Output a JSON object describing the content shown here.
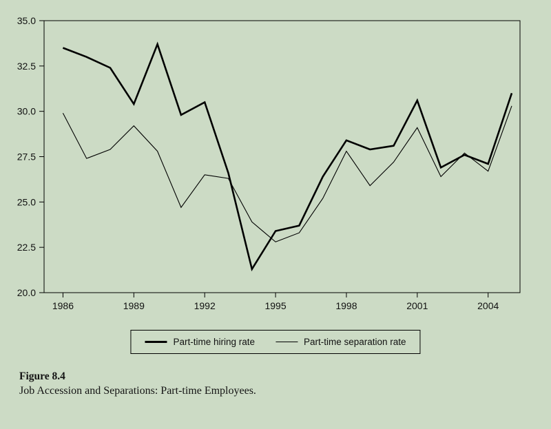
{
  "figure": {
    "number": "Figure 8.4",
    "caption": "Job Accession and Separations: Part-time Employees."
  },
  "legend": {
    "items": [
      {
        "label": "Part-time hiring rate",
        "weight": "thick"
      },
      {
        "label": "Part-time separation rate",
        "weight": "thin"
      }
    ]
  },
  "colors": {
    "background": "#ccdbc5",
    "line": "#000000",
    "axis": "#000000",
    "text": "#111111"
  },
  "chart_data": {
    "type": "line",
    "title": "",
    "xlabel": "",
    "ylabel": "",
    "grid": false,
    "legend_position": "bottom",
    "ylim": [
      20.0,
      35.0
    ],
    "x": [
      1986,
      1987,
      1988,
      1989,
      1990,
      1991,
      1992,
      1993,
      1994,
      1995,
      1996,
      1997,
      1998,
      1999,
      2000,
      2001,
      2002,
      2003,
      2004,
      2005
    ],
    "series": [
      {
        "name": "Part-time hiring rate",
        "stroke_width": 2.6,
        "values": [
          33.5,
          33.0,
          32.4,
          30.4,
          33.7,
          29.8,
          30.5,
          26.6,
          21.3,
          23.4,
          23.7,
          26.4,
          28.4,
          27.9,
          28.1,
          30.6,
          26.9,
          27.6,
          27.1,
          31.0
        ]
      },
      {
        "name": "Part-time separation rate",
        "stroke_width": 1.1,
        "values": [
          29.9,
          27.4,
          27.9,
          29.2,
          27.8,
          24.7,
          26.5,
          26.3,
          23.9,
          22.8,
          23.3,
          25.2,
          27.8,
          25.9,
          27.2,
          29.1,
          26.4,
          27.7,
          26.7,
          30.3
        ]
      }
    ],
    "yticks": [
      {
        "value": 35.0,
        "label": "35.0"
      },
      {
        "value": 32.5,
        "label": "32.5"
      },
      {
        "value": 30.0,
        "label": "30.0"
      },
      {
        "value": 27.5,
        "label": "27.5"
      },
      {
        "value": 25.0,
        "label": "25.0"
      },
      {
        "value": 22.5,
        "label": "22.5"
      },
      {
        "value": 20.0,
        "label": "20.0"
      }
    ],
    "xticks": [
      {
        "value": 1986,
        "label": "1986"
      },
      {
        "value": 1989,
        "label": "1989"
      },
      {
        "value": 1992,
        "label": "1992"
      },
      {
        "value": 1995,
        "label": "1995"
      },
      {
        "value": 1998,
        "label": "1998"
      },
      {
        "value": 2001,
        "label": "2001"
      },
      {
        "value": 2004,
        "label": "2004"
      }
    ]
  }
}
